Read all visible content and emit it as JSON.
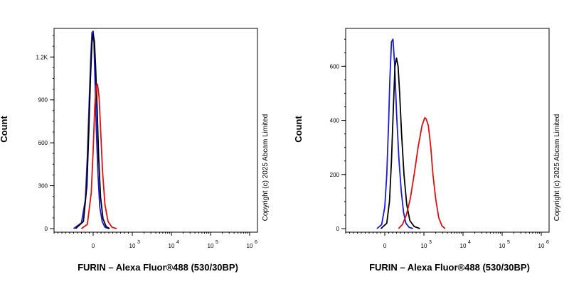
{
  "chart_data": [
    {
      "type": "line",
      "xlabel": "FURIN – Alexa Fluor®488 (530/30BP)",
      "ylabel": "Count",
      "watermark": "Copyright (c) 2025 Abcam Limited",
      "x_scale": "biexponential",
      "xlim": [
        -1000,
        1000000
      ],
      "ylim": [
        0,
        1400
      ],
      "yticks": [
        {
          "value": 0,
          "label": "0"
        },
        {
          "value": 300,
          "label": "300"
        },
        {
          "value": 600,
          "label": "600"
        },
        {
          "value": 900,
          "label": "900"
        },
        {
          "value": 1200,
          "label": "1.2K"
        }
      ],
      "xticks": [
        {
          "value": 0,
          "label": "0",
          "exp": ""
        },
        {
          "value": 1000,
          "label": "10",
          "exp": "3"
        },
        {
          "value": 10000,
          "label": "10",
          "exp": "4"
        },
        {
          "value": 100000,
          "label": "10",
          "exp": "5"
        },
        {
          "value": 1000000,
          "label": "10",
          "exp": "6"
        }
      ],
      "grid": false,
      "series": [
        {
          "color": "#1a1adb",
          "x": [
            -500,
            -300,
            -200,
            -150,
            -100,
            -60,
            -30,
            0,
            20,
            50,
            80,
            120,
            170,
            230,
            300,
            400
          ],
          "y": [
            0,
            40,
            200,
            500,
            900,
            1200,
            1370,
            1380,
            1300,
            1000,
            700,
            400,
            150,
            50,
            10,
            0
          ]
        },
        {
          "color": "#000000",
          "x": [
            -450,
            -250,
            -160,
            -110,
            -70,
            -30,
            0,
            30,
            60,
            100,
            140,
            190,
            250,
            330,
            420
          ],
          "y": [
            0,
            50,
            300,
            700,
            1050,
            1300,
            1360,
            1310,
            1150,
            850,
            500,
            220,
            70,
            15,
            0
          ]
        },
        {
          "color": "#dd1111",
          "x": [
            -300,
            -150,
            -50,
            0,
            40,
            80,
            110,
            150,
            190,
            240,
            300,
            380,
            480,
            600
          ],
          "y": [
            0,
            30,
            250,
            550,
            850,
            1000,
            1010,
            920,
            700,
            400,
            170,
            50,
            10,
            0
          ]
        }
      ]
    },
    {
      "type": "line",
      "xlabel": "FURIN – Alexa Fluor®488 (530/30BP)",
      "ylabel": "Count",
      "watermark": "Copyright (c) 2025 Abcam Limited",
      "x_scale": "biexponential",
      "xlim": [
        -1000,
        1000000
      ],
      "ylim": [
        0,
        740
      ],
      "yticks": [
        {
          "value": 0,
          "label": "0"
        },
        {
          "value": 200,
          "label": "200"
        },
        {
          "value": 400,
          "label": "400"
        },
        {
          "value": 600,
          "label": "600"
        }
      ],
      "xticks": [
        {
          "value": 0,
          "label": "0",
          "exp": ""
        },
        {
          "value": 1000,
          "label": "10",
          "exp": "3"
        },
        {
          "value": 10000,
          "label": "10",
          "exp": "4"
        },
        {
          "value": 100000,
          "label": "10",
          "exp": "5"
        },
        {
          "value": 1000000,
          "label": "10",
          "exp": "6"
        }
      ],
      "grid": false,
      "series": [
        {
          "color": "#1a1adb",
          "x": [
            -200,
            -80,
            0,
            50,
            100,
            130,
            170,
            210,
            250,
            300,
            360,
            420,
            480,
            540,
            620,
            720
          ],
          "y": [
            0,
            15,
            80,
            200,
            400,
            550,
            690,
            700,
            610,
            430,
            260,
            140,
            60,
            20,
            5,
            0
          ]
        },
        {
          "color": "#000000",
          "x": [
            -100,
            50,
            120,
            170,
            220,
            260,
            300,
            340,
            380,
            430,
            490,
            560,
            640,
            750,
            900
          ],
          "y": [
            0,
            20,
            100,
            250,
            450,
            600,
            630,
            600,
            500,
            350,
            200,
            90,
            30,
            8,
            0
          ]
        },
        {
          "color": "#dd1111",
          "x": [
            350,
            450,
            550,
            650,
            750,
            850,
            950,
            1050,
            1150,
            1300,
            1500,
            1700,
            2000,
            2400,
            2900,
            3500
          ],
          "y": [
            0,
            15,
            50,
            110,
            200,
            300,
            380,
            410,
            405,
            380,
            300,
            200,
            110,
            40,
            10,
            0
          ]
        }
      ]
    }
  ]
}
